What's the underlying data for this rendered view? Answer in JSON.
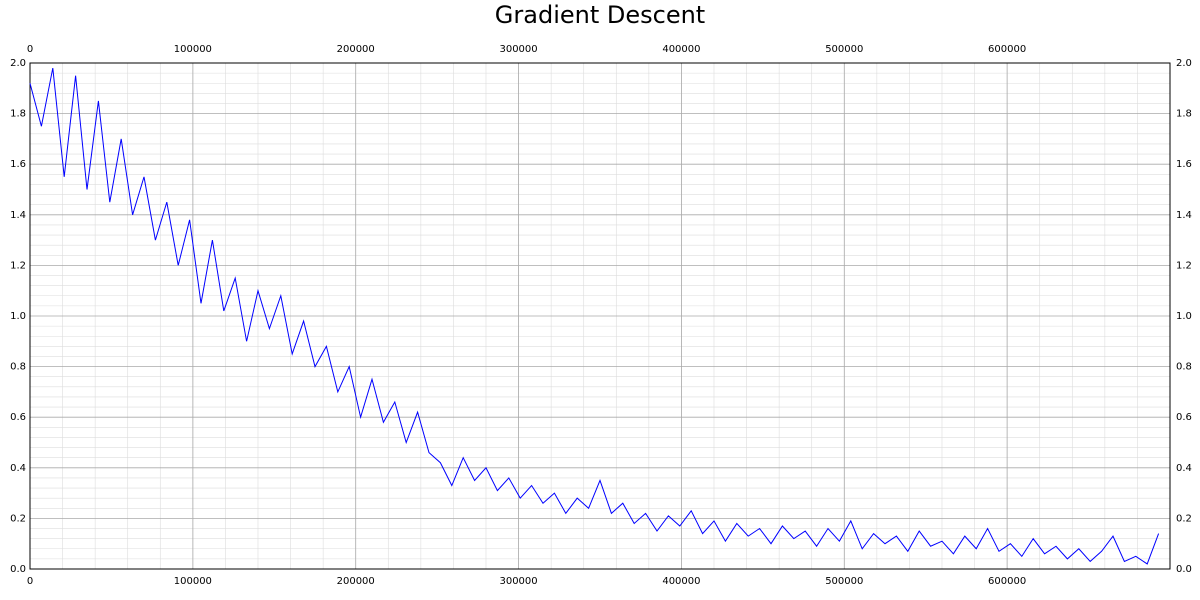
{
  "chart_data": {
    "type": "line",
    "title": "Gradient Descent",
    "x": [
      0,
      7000,
      14000,
      21000,
      28000,
      35000,
      42000,
      49000,
      56000,
      63000,
      70000,
      77000,
      84000,
      91000,
      98000,
      105000,
      112000,
      119000,
      126000,
      133000,
      140000,
      147000,
      154000,
      161000,
      168000,
      175000,
      182000,
      189000,
      196000,
      203000,
      210000,
      217000,
      224000,
      231000,
      238000,
      245000,
      252000,
      259000,
      266000,
      273000,
      280000,
      287000,
      294000,
      301000,
      308000,
      315000,
      322000,
      329000,
      336000,
      343000,
      350000,
      357000,
      364000,
      371000,
      378000,
      385000,
      392000,
      399000,
      406000,
      413000,
      420000,
      427000,
      434000,
      441000,
      448000,
      455000,
      462000,
      469000,
      476000,
      483000,
      490000,
      497000,
      504000,
      511000,
      518000,
      525000,
      532000,
      539000,
      546000,
      553000,
      560000,
      567000,
      574000,
      581000,
      588000,
      595000,
      602000,
      609000,
      616000,
      623000,
      630000,
      637000,
      644000,
      651000,
      658000,
      665000,
      672000,
      679000,
      686000,
      693000
    ],
    "series": [
      {
        "color": "#0000ff",
        "values": [
          1.92,
          1.75,
          1.98,
          1.55,
          1.95,
          1.5,
          1.85,
          1.45,
          1.7,
          1.4,
          1.55,
          1.3,
          1.45,
          1.2,
          1.38,
          1.05,
          1.3,
          1.02,
          1.15,
          0.9,
          1.1,
          0.95,
          1.08,
          0.85,
          0.98,
          0.8,
          0.88,
          0.7,
          0.8,
          0.6,
          0.75,
          0.58,
          0.66,
          0.5,
          0.62,
          0.46,
          0.42,
          0.33,
          0.44,
          0.35,
          0.4,
          0.31,
          0.36,
          0.28,
          0.33,
          0.26,
          0.3,
          0.22,
          0.28,
          0.24,
          0.35,
          0.22,
          0.26,
          0.18,
          0.22,
          0.15,
          0.21,
          0.17,
          0.23,
          0.14,
          0.19,
          0.11,
          0.18,
          0.13,
          0.16,
          0.1,
          0.17,
          0.12,
          0.15,
          0.09,
          0.16,
          0.11,
          0.19,
          0.08,
          0.14,
          0.1,
          0.13,
          0.07,
          0.15,
          0.09,
          0.11,
          0.06,
          0.13,
          0.08,
          0.16,
          0.07,
          0.1,
          0.05,
          0.12,
          0.06,
          0.09,
          0.04,
          0.08,
          0.03,
          0.07,
          0.13,
          0.03,
          0.05,
          0.02,
          0.14
        ]
      }
    ],
    "xlim": [
      0,
      700000
    ],
    "xticks": [
      0,
      100000,
      200000,
      300000,
      400000,
      500000,
      600000
    ],
    "ylim": [
      0,
      2
    ],
    "yticks": [
      {
        "value": 0,
        "label": "0.0"
      },
      0.2,
      0.4,
      0.6,
      0.8,
      {
        "value": 1,
        "label": "1.0"
      },
      1.2,
      1.4,
      1.6,
      1.8,
      {
        "value": 2,
        "label": "2.0"
      }
    ],
    "grid": true
  }
}
